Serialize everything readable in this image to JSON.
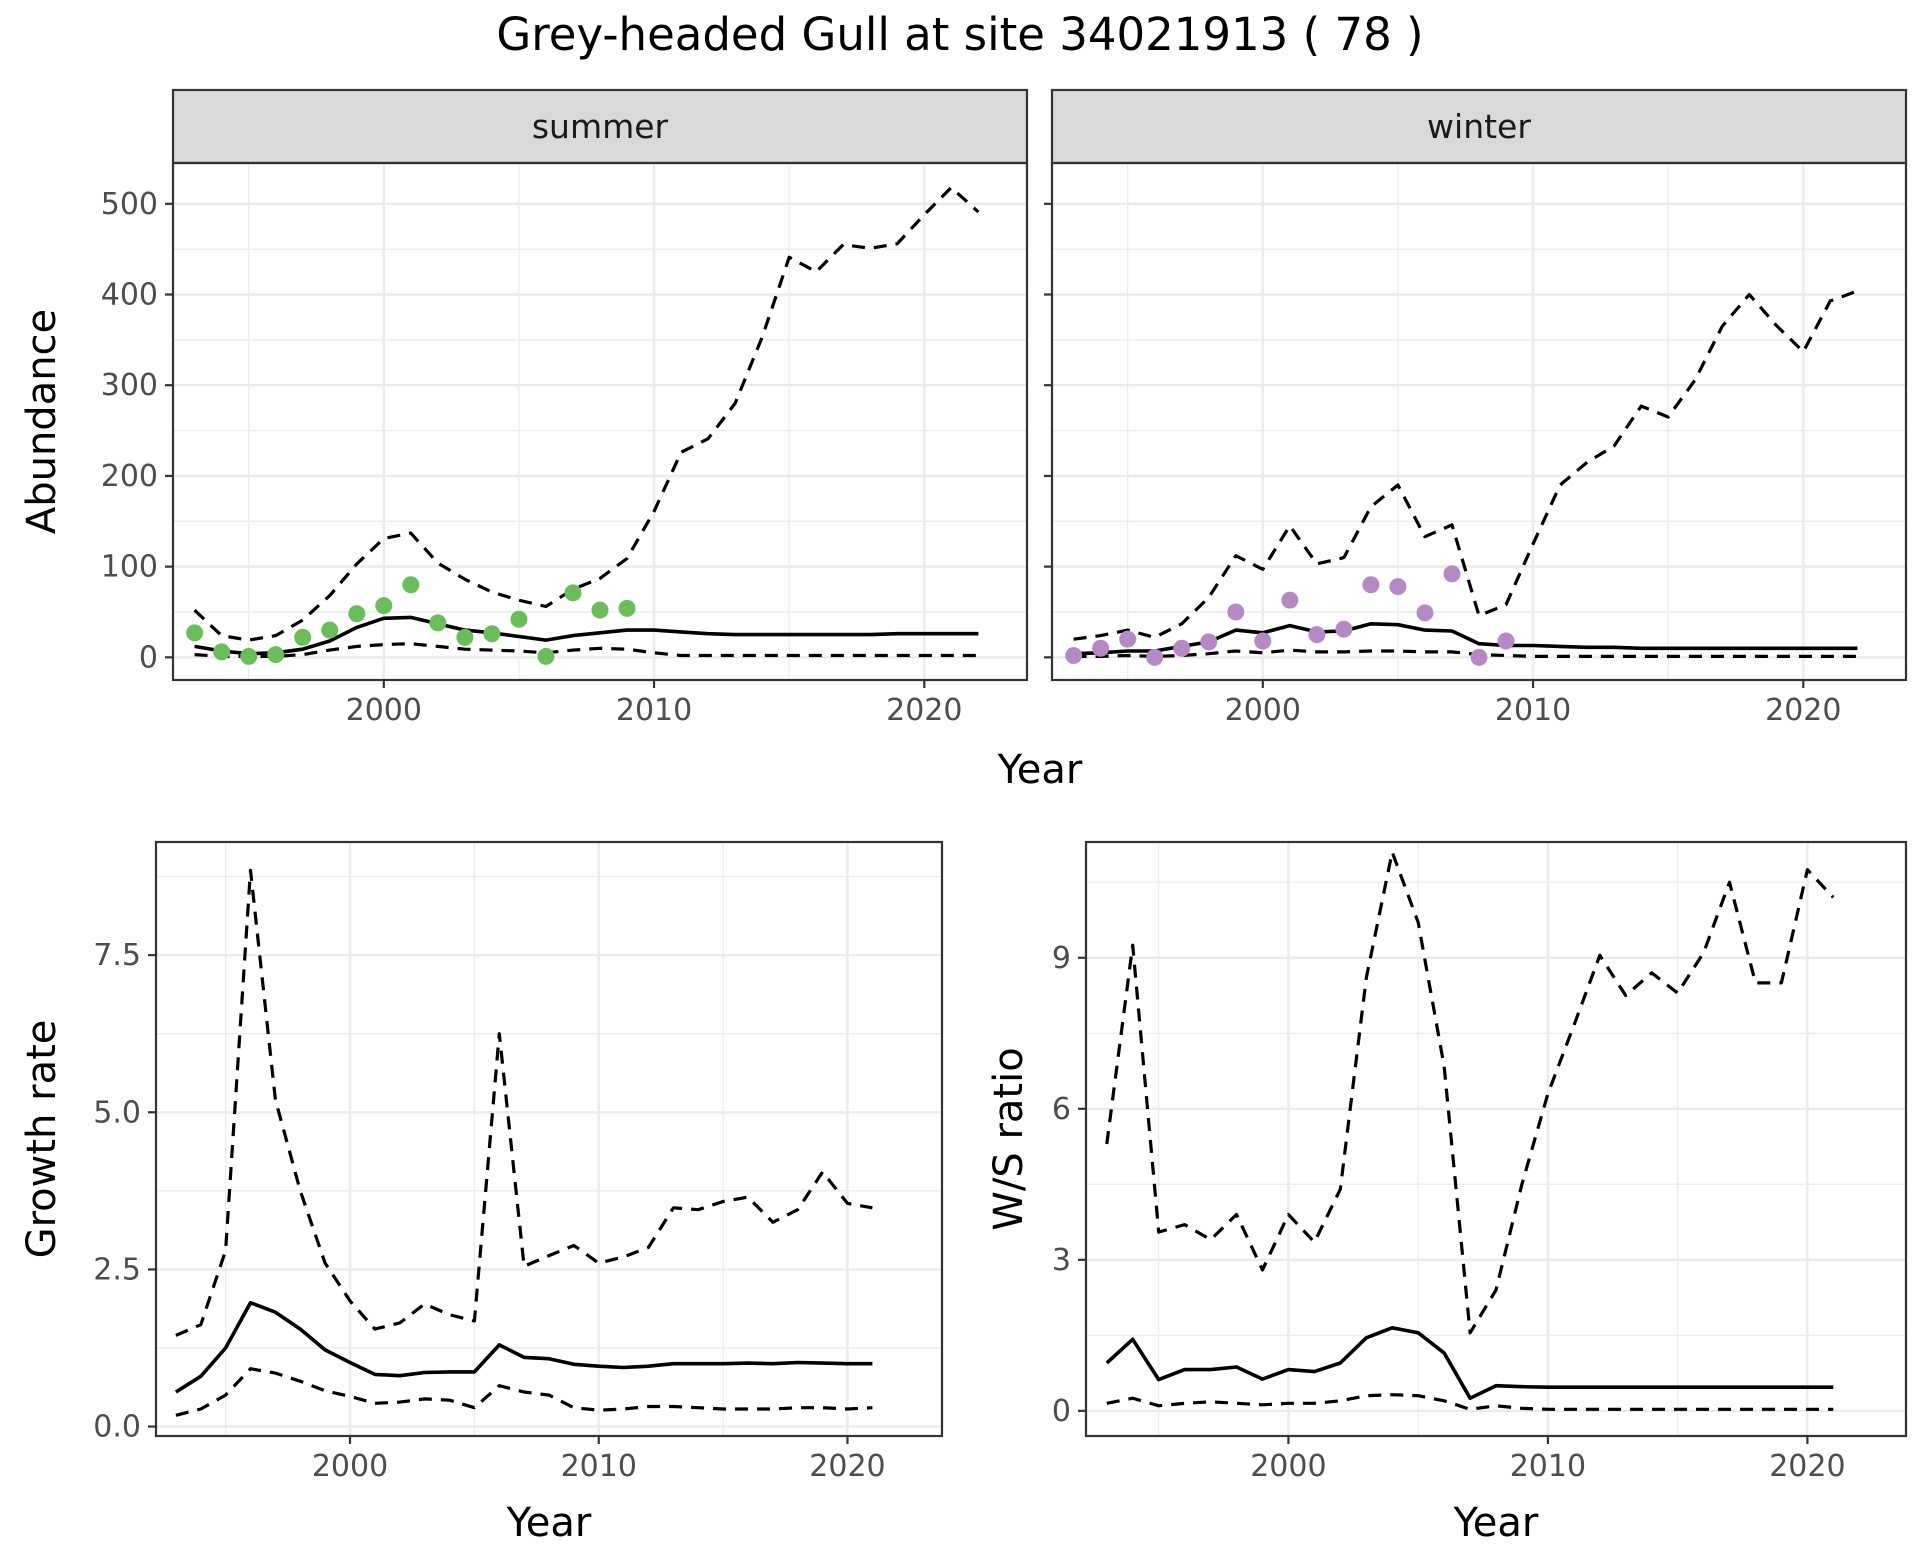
{
  "title": "Grey-headed Gull at site 34021913 ( 78 )",
  "colors": {
    "summer_points": "#6abd5a",
    "winter_points": "#b58ac4"
  },
  "chart_data": [
    {
      "id": "abundance_summer",
      "type": "line",
      "strip": "summer",
      "xlabel": "",
      "ylabel": "Abundance",
      "xlim": [
        1992.2,
        2023.8
      ],
      "ylim": [
        -25,
        545
      ],
      "xticks": [
        2000,
        2010,
        2020
      ],
      "yticks": [
        0,
        100,
        200,
        300,
        400,
        500
      ],
      "grid": true,
      "x": [
        1993,
        1994,
        1995,
        1996,
        1997,
        1998,
        1999,
        2000,
        2001,
        2002,
        2003,
        2004,
        2005,
        2006,
        2007,
        2008,
        2009,
        2010,
        2011,
        2012,
        2013,
        2014,
        2015,
        2016,
        2017,
        2018,
        2019,
        2020,
        2021,
        2022
      ],
      "series": [
        {
          "values": [
            12,
            7,
            4,
            5,
            9,
            18,
            33,
            43,
            44,
            37,
            30,
            27,
            23,
            19,
            24,
            27,
            30,
            30,
            28,
            26,
            25,
            25,
            25,
            25,
            25,
            25,
            26,
            26,
            26,
            26
          ]
        },
        {
          "values": [
            52,
            24,
            19,
            24,
            41,
            68,
            103,
            131,
            137,
            104,
            86,
            72,
            63,
            56,
            75,
            87,
            109,
            161,
            226,
            241,
            280,
            353,
            441,
            425,
            455,
            451,
            456,
            488,
            518,
            491
          ]
        },
        {
          "values": [
            3,
            1,
            1,
            1,
            3,
            8,
            12,
            14,
            15,
            12,
            9,
            8,
            7,
            5,
            8,
            10,
            9,
            5,
            2,
            2,
            2,
            2,
            2,
            2,
            2,
            2,
            2,
            2,
            2,
            2
          ]
        }
      ],
      "points": {
        "x": [
          1993,
          1994,
          1995,
          1996,
          1997,
          1998,
          1999,
          2000,
          2001,
          2002,
          2003,
          2004,
          2005,
          2006,
          2007,
          2008,
          2009
        ],
        "y": [
          27,
          6,
          1,
          3,
          22,
          30,
          48,
          57,
          80,
          38,
          22,
          26,
          42,
          1,
          71,
          52,
          54
        ]
      }
    },
    {
      "id": "abundance_winter",
      "type": "line",
      "strip": "winter",
      "xlabel": "",
      "ylabel": "",
      "xlim": [
        1992.2,
        2023.8
      ],
      "ylim": [
        -25,
        545
      ],
      "xticks": [
        2000,
        2010,
        2020
      ],
      "yticks": [],
      "grid": true,
      "x": [
        1993,
        1994,
        1995,
        1996,
        1997,
        1998,
        1999,
        2000,
        2001,
        2002,
        2003,
        2004,
        2005,
        2006,
        2007,
        2008,
        2009,
        2010,
        2011,
        2012,
        2013,
        2014,
        2015,
        2016,
        2017,
        2018,
        2019,
        2020,
        2021,
        2022
      ],
      "series": [
        {
          "values": [
            4,
            5,
            7,
            7,
            12,
            17,
            30,
            27,
            35,
            28,
            29,
            37,
            36,
            30,
            29,
            15,
            13,
            13,
            12,
            11,
            11,
            10,
            10,
            10,
            10,
            10,
            10,
            10,
            10,
            10
          ]
        },
        {
          "values": [
            20,
            24,
            30,
            22,
            37,
            66,
            112,
            97,
            145,
            103,
            110,
            166,
            190,
            133,
            146,
            46,
            58,
            125,
            190,
            215,
            233,
            277,
            265,
            306,
            365,
            400,
            366,
            337,
            393,
            404
          ]
        },
        {
          "values": [
            1,
            1,
            2,
            1,
            2,
            4,
            7,
            5,
            8,
            6,
            6,
            7,
            7,
            6,
            6,
            3,
            2,
            1,
            1,
            1,
            1,
            1,
            1,
            1,
            1,
            1,
            1,
            1,
            1,
            1
          ]
        }
      ],
      "points": {
        "x": [
          1993,
          1994,
          1995,
          1996,
          1997,
          1998,
          1999,
          2000,
          2001,
          2002,
          2003,
          2004,
          2005,
          2006,
          2007,
          2008,
          2009
        ],
        "y": [
          2,
          10,
          20,
          0,
          10,
          17,
          50,
          18,
          63,
          25,
          31,
          80,
          78,
          49,
          92,
          0,
          18
        ]
      }
    },
    {
      "id": "growth_rate",
      "type": "line",
      "xlabel": "Year",
      "ylabel": "Growth rate",
      "xlim": [
        1992.2,
        2023.8
      ],
      "ylim": [
        -0.15,
        9.3
      ],
      "xticks": [
        2000,
        2010,
        2020
      ],
      "yticks": [
        0.0,
        2.5,
        5.0,
        7.5
      ],
      "ytick_labels": [
        "0.0",
        "2.5",
        "5.0",
        "7.5"
      ],
      "grid": true,
      "x": [
        1993,
        1994,
        1995,
        1996,
        1997,
        1998,
        1999,
        2000,
        2001,
        2002,
        2003,
        2004,
        2005,
        2006,
        2007,
        2008,
        2009,
        2010,
        2011,
        2012,
        2013,
        2014,
        2015,
        2016,
        2017,
        2018,
        2019,
        2020,
        2021
      ],
      "series": [
        {
          "values": [
            0.55,
            0.8,
            1.25,
            1.97,
            1.82,
            1.55,
            1.22,
            1.02,
            0.83,
            0.81,
            0.86,
            0.87,
            0.87,
            1.3,
            1.1,
            1.08,
            0.99,
            0.96,
            0.94,
            0.96,
            1.0,
            1.0,
            1.0,
            1.01,
            1.0,
            1.02,
            1.01,
            1.0,
            1.0
          ]
        },
        {
          "values": [
            1.45,
            1.62,
            2.8,
            8.85,
            5.2,
            3.75,
            2.6,
            2.0,
            1.55,
            1.65,
            1.95,
            1.78,
            1.68,
            6.25,
            2.55,
            2.72,
            2.88,
            2.6,
            2.7,
            2.85,
            3.48,
            3.45,
            3.58,
            3.65,
            3.25,
            3.45,
            4.05,
            3.55,
            3.48
          ]
        },
        {
          "values": [
            0.18,
            0.28,
            0.5,
            0.92,
            0.85,
            0.72,
            0.57,
            0.48,
            0.37,
            0.39,
            0.44,
            0.42,
            0.3,
            0.65,
            0.55,
            0.5,
            0.3,
            0.26,
            0.28,
            0.32,
            0.32,
            0.3,
            0.28,
            0.28,
            0.28,
            0.3,
            0.3,
            0.28,
            0.3
          ]
        }
      ]
    },
    {
      "id": "ws_ratio",
      "type": "line",
      "xlabel": "Year",
      "ylabel": "W/S ratio",
      "xlim": [
        1992.2,
        2023.8
      ],
      "ylim": [
        -0.5,
        11.3
      ],
      "xticks": [
        2000,
        2010,
        2020
      ],
      "yticks": [
        0,
        3,
        6,
        9
      ],
      "grid": true,
      "x": [
        1993,
        1994,
        1995,
        1996,
        1997,
        1998,
        1999,
        2000,
        2001,
        2002,
        2003,
        2004,
        2005,
        2006,
        2007,
        2008,
        2009,
        2010,
        2011,
        2012,
        2013,
        2014,
        2015,
        2016,
        2017,
        2018,
        2019,
        2020,
        2021
      ],
      "series": [
        {
          "values": [
            0.95,
            1.42,
            0.62,
            0.82,
            0.82,
            0.87,
            0.63,
            0.82,
            0.78,
            0.95,
            1.45,
            1.65,
            1.55,
            1.15,
            0.25,
            0.5,
            0.48,
            0.47,
            0.47,
            0.47,
            0.47,
            0.47,
            0.47,
            0.47,
            0.47,
            0.47,
            0.47,
            0.47,
            0.47
          ]
        },
        {
          "values": [
            5.3,
            9.25,
            3.55,
            3.7,
            3.4,
            3.9,
            2.8,
            3.9,
            3.35,
            4.4,
            8.6,
            11.1,
            9.7,
            6.85,
            1.55,
            2.4,
            4.5,
            6.3,
            7.65,
            9.05,
            8.25,
            8.7,
            8.3,
            9.1,
            10.5,
            8.5,
            8.5,
            10.75,
            10.2
          ]
        },
        {
          "values": [
            0.15,
            0.25,
            0.1,
            0.15,
            0.18,
            0.15,
            0.12,
            0.15,
            0.15,
            0.2,
            0.3,
            0.32,
            0.3,
            0.2,
            0.03,
            0.1,
            0.05,
            0.03,
            0.03,
            0.03,
            0.03,
            0.03,
            0.03,
            0.03,
            0.03,
            0.03,
            0.03,
            0.03,
            0.03
          ]
        }
      ]
    }
  ]
}
